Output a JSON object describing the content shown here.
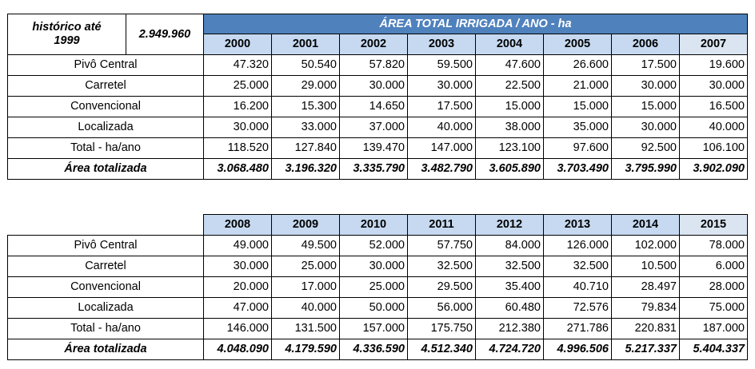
{
  "historico": {
    "label_line1": "histórico até",
    "label_line2": "1999",
    "value": "2.949.960"
  },
  "band_title": "ÁREA TOTAL IRRIGADA / ANO - ha",
  "row_labels": [
    "Pivô Central",
    "Carretel",
    "Convencional",
    "Localizada",
    "Total - ha/ano",
    "Área totalizada"
  ],
  "table1": {
    "years": [
      "2000",
      "2001",
      "2002",
      "2003",
      "2004",
      "2005",
      "2006",
      "2007"
    ],
    "rows": [
      [
        "47.320",
        "50.540",
        "57.820",
        "59.500",
        "47.600",
        "26.600",
        "17.500",
        "19.600"
      ],
      [
        "25.000",
        "29.000",
        "30.000",
        "30.000",
        "22.500",
        "21.000",
        "30.000",
        "30.000"
      ],
      [
        "16.200",
        "15.300",
        "14.650",
        "17.500",
        "15.000",
        "15.000",
        "15.000",
        "16.500"
      ],
      [
        "30.000",
        "33.000",
        "37.000",
        "40.000",
        "38.000",
        "35.000",
        "30.000",
        "40.000"
      ],
      [
        "118.520",
        "127.840",
        "139.470",
        "147.000",
        "123.100",
        "97.600",
        "92.500",
        "106.100"
      ],
      [
        "3.068.480",
        "3.196.320",
        "3.335.790",
        "3.482.790",
        "3.605.890",
        "3.703.490",
        "3.795.990",
        "3.902.090"
      ]
    ]
  },
  "table2": {
    "years": [
      "2008",
      "2009",
      "2010",
      "2011",
      "2012",
      "2013",
      "2014",
      "2015"
    ],
    "rows": [
      [
        "49.000",
        "49.500",
        "52.000",
        "57.750",
        "84.000",
        "126.000",
        "102.000",
        "78.000"
      ],
      [
        "30.000",
        "25.000",
        "30.000",
        "32.500",
        "32.500",
        "32.500",
        "10.500",
        "6.000"
      ],
      [
        "20.000",
        "17.000",
        "25.000",
        "29.500",
        "35.400",
        "40.710",
        "28.497",
        "28.000"
      ],
      [
        "47.000",
        "40.000",
        "50.000",
        "56.000",
        "60.480",
        "72.576",
        "79.834",
        "75.000"
      ],
      [
        "146.000",
        "131.500",
        "157.000",
        "175.750",
        "212.380",
        "271.786",
        "220.831",
        "187.000"
      ],
      [
        "4.048.090",
        "4.179.590",
        "4.336.590",
        "4.512.340",
        "4.724.720",
        "4.996.506",
        "5.217.337",
        "5.404.337"
      ]
    ]
  }
}
